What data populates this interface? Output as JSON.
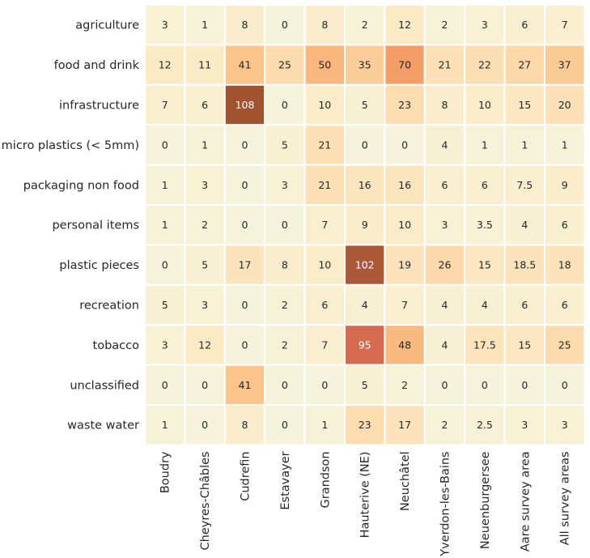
{
  "chart_data": {
    "type": "heatmap",
    "title": "",
    "xlabel": "",
    "ylabel": "",
    "columns": [
      "Boudry",
      "Cheyres-Châbles",
      "Cudrefin",
      "Estavayer",
      "Grandson",
      "Hauterive (NE)",
      "Neuchâtel",
      "Yverdon-les-Bains",
      "Neuenburgersee",
      "Aare survey area",
      "All survey areas"
    ],
    "rows": [
      "agriculture",
      "food and drink",
      "infrastructure",
      "micro plastics (< 5mm)",
      "packaging non food",
      "personal items",
      "plastic pieces",
      "recreation",
      "tobacco",
      "unclassified",
      "waste water"
    ],
    "values": [
      [
        3,
        1,
        8,
        0,
        8,
        2,
        12,
        2,
        3,
        6,
        7
      ],
      [
        12,
        11,
        41,
        25,
        50,
        35,
        70,
        21,
        22,
        27,
        37
      ],
      [
        7,
        6,
        108,
        0,
        10,
        5,
        23,
        8,
        10,
        15,
        20
      ],
      [
        0,
        1,
        0,
        5,
        21,
        0,
        0,
        4,
        1,
        1,
        1
      ],
      [
        1,
        3,
        0,
        3,
        21,
        16,
        16,
        6,
        6,
        7.5,
        9
      ],
      [
        1,
        2,
        0,
        0,
        7,
        9,
        10,
        3,
        3.5,
        4,
        6
      ],
      [
        0,
        5,
        17,
        8,
        10,
        102,
        19,
        26,
        15,
        18.5,
        18
      ],
      [
        5,
        3,
        0,
        2,
        6,
        4,
        7,
        4,
        4,
        6,
        6
      ],
      [
        3,
        12,
        0,
        2,
        7,
        95,
        48,
        4,
        17.5,
        15,
        25
      ],
      [
        0,
        0,
        41,
        0,
        0,
        5,
        2,
        0,
        0,
        0,
        0
      ],
      [
        1,
        0,
        8,
        0,
        1,
        23,
        17,
        2,
        2.5,
        3,
        3
      ]
    ],
    "vmin": 0,
    "vmax": 108,
    "colorbar": false,
    "colormap": {
      "stops": [
        {
          "v": 0,
          "color": "#f5f3dc"
        },
        {
          "v": 10,
          "color": "#faecc9"
        },
        {
          "v": 20,
          "color": "#fce1b8"
        },
        {
          "v": 30,
          "color": "#fbd4a4"
        },
        {
          "v": 40,
          "color": "#fac78e"
        },
        {
          "v": 50,
          "color": "#f9b77e"
        },
        {
          "v": 70,
          "color": "#f59d66"
        },
        {
          "v": 95,
          "color": "#d46a4f"
        },
        {
          "v": 102,
          "color": "#ab573a"
        },
        {
          "v": 108,
          "color": "#a0532e"
        }
      ],
      "dark_text_threshold": 80,
      "light_text_color": "#ffffff",
      "dark_text_color": "#262626"
    },
    "grid_line_color": "#ffffff"
  }
}
